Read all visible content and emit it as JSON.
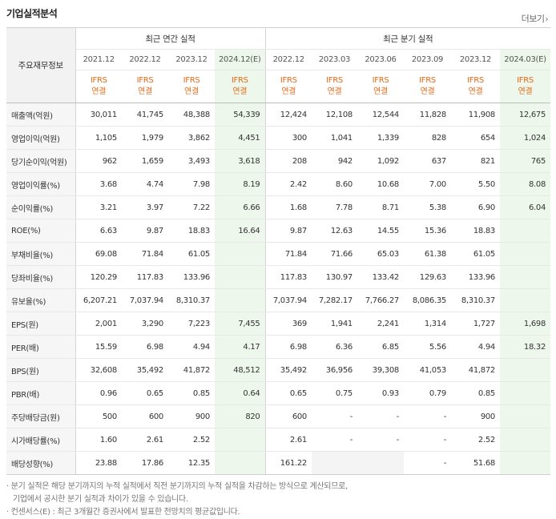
{
  "title": "기업실적분석",
  "more_label": "더보기",
  "header": {
    "row_label": "주요재무정보",
    "annual_group": "최근 연간 실적",
    "quarter_group": "최근 분기 실적",
    "periods": [
      "2021.12",
      "2022.12",
      "2023.12",
      "2024.12(E)",
      "2022.12",
      "2023.03",
      "2023.06",
      "2023.09",
      "2023.12",
      "2024.03(E)"
    ],
    "standard": "IFRS",
    "basis": "연결"
  },
  "rows": [
    {
      "label": "매출액(억원)",
      "values": [
        "30,011",
        "41,745",
        "48,388",
        "54,339",
        "12,424",
        "12,108",
        "12,544",
        "11,828",
        "11,908",
        "12,675"
      ]
    },
    {
      "label": "영업이익(억원)",
      "values": [
        "1,105",
        "1,979",
        "3,862",
        "4,451",
        "300",
        "1,041",
        "1,339",
        "828",
        "654",
        "1,024"
      ]
    },
    {
      "label": "당기순이익(억원)",
      "values": [
        "962",
        "1,659",
        "3,493",
        "3,618",
        "208",
        "942",
        "1,092",
        "637",
        "821",
        "765"
      ]
    },
    {
      "label": "영업이익률(%)",
      "values": [
        "3.68",
        "4.74",
        "7.98",
        "8.19",
        "2.42",
        "8.60",
        "10.68",
        "7.00",
        "5.50",
        "8.08"
      ]
    },
    {
      "label": "순이익률(%)",
      "values": [
        "3.21",
        "3.97",
        "7.22",
        "6.66",
        "1.68",
        "7.78",
        "8.71",
        "5.38",
        "6.90",
        "6.04"
      ]
    },
    {
      "label": "ROE(%)",
      "values": [
        "6.63",
        "9.87",
        "18.83",
        "16.64",
        "9.87",
        "12.63",
        "14.55",
        "15.36",
        "18.83",
        ""
      ]
    },
    {
      "label": "부채비율(%)",
      "values": [
        "69.08",
        "71.84",
        "61.05",
        "",
        "71.84",
        "71.66",
        "65.03",
        "61.38",
        "61.05",
        ""
      ]
    },
    {
      "label": "당좌비율(%)",
      "values": [
        "120.29",
        "117.83",
        "133.96",
        "",
        "117.83",
        "130.97",
        "133.42",
        "129.63",
        "133.96",
        ""
      ]
    },
    {
      "label": "유보율(%)",
      "values": [
        "6,207.21",
        "7,037.94",
        "8,310.37",
        "",
        "7,037.94",
        "7,282.17",
        "7,766.27",
        "8,086.35",
        "8,310.37",
        ""
      ]
    },
    {
      "label": "EPS(원)",
      "values": [
        "2,001",
        "3,290",
        "7,223",
        "7,455",
        "369",
        "1,941",
        "2,241",
        "1,314",
        "1,727",
        "1,698"
      ]
    },
    {
      "label": "PER(배)",
      "values": [
        "15.59",
        "6.98",
        "4.94",
        "4.17",
        "6.98",
        "6.36",
        "6.85",
        "5.56",
        "4.94",
        "18.32"
      ]
    },
    {
      "label": "BPS(원)",
      "values": [
        "32,608",
        "35,492",
        "41,872",
        "48,512",
        "35,492",
        "36,956",
        "39,308",
        "41,053",
        "41,872",
        ""
      ]
    },
    {
      "label": "PBR(배)",
      "values": [
        "0.96",
        "0.65",
        "0.85",
        "0.64",
        "0.65",
        "0.75",
        "0.93",
        "0.79",
        "0.85",
        ""
      ]
    },
    {
      "label": "주당배당금(원)",
      "values": [
        "500",
        "600",
        "900",
        "820",
        "600",
        "-",
        "-",
        "-",
        "900",
        ""
      ]
    },
    {
      "label": "시가배당률(%)",
      "values": [
        "1.60",
        "2.61",
        "2.52",
        "",
        "2.61",
        "-",
        "-",
        "-",
        "2.52",
        ""
      ]
    },
    {
      "label": "배당성향(%)",
      "values": [
        "23.88",
        "17.86",
        "12.35",
        "",
        "161.22",
        "",
        "",
        "-",
        "51.68",
        ""
      ]
    }
  ],
  "notes": [
    "· 분기 실적은 해당 분기까지의 누적 실적에서 직전 분기까지의 누적 실적을 차감하는 방식으로 계산되므로,",
    "기업에서 공시한 분기 실적과 차이가 있을 수 있습니다.",
    "· 컨센서스(E) : 최근 3개월간 증권사에서 발표한 전망치의 평균값입니다."
  ],
  "colors": {
    "ifrs_accent": "#e36a17",
    "estimate_bg": "#eef7ec",
    "label_bg": "#f6f6f6"
  }
}
